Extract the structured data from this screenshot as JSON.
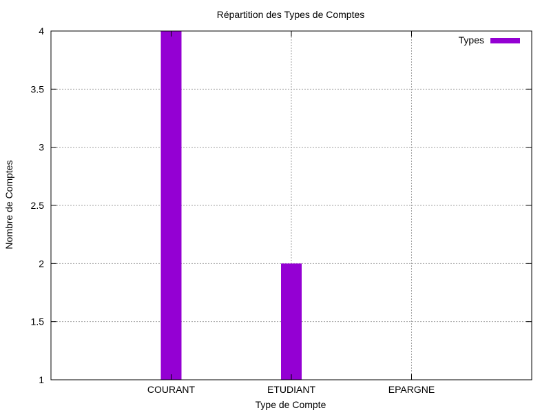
{
  "chart_data": {
    "type": "bar",
    "title": "Répartition des Types de Comptes",
    "xlabel": "Type de Compte",
    "ylabel": "Nombre de Comptes",
    "categories": [
      "COURANT",
      "ETUDIANT",
      "EPARGNE"
    ],
    "series": [
      {
        "name": "Types",
        "values": [
          4,
          2,
          1
        ],
        "color": "#9400d3"
      }
    ],
    "ylim": [
      1,
      4
    ],
    "yticks": [
      1,
      1.5,
      2,
      2.5,
      3,
      3.5,
      4
    ],
    "ytick_labels": [
      "1",
      "1.5",
      "2",
      "2.5",
      "3",
      "3.5",
      "4"
    ],
    "grid": true,
    "legend_position": "top-right"
  }
}
